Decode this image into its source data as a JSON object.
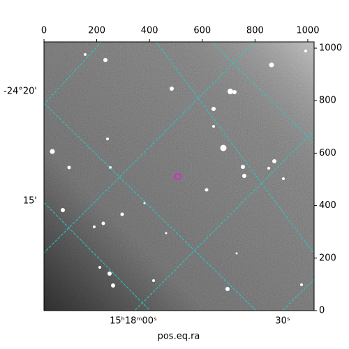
{
  "chart_data": {
    "type": "image",
    "xlabel": "pos.eq.ra",
    "xlim": [
      0,
      1024
    ],
    "xticks": [
      0,
      200,
      400,
      600,
      800,
      1000
    ],
    "ylim": [
      0,
      1024
    ],
    "yticks": [
      0,
      200,
      400,
      600,
      800,
      1000
    ],
    "ra_labels": [
      "15ʰ18ᵐ00ˢ",
      "30ˢ"
    ],
    "dec_labels": [
      "-24°20'",
      "15'"
    ],
    "grid_color": "#22cccc"
  }
}
